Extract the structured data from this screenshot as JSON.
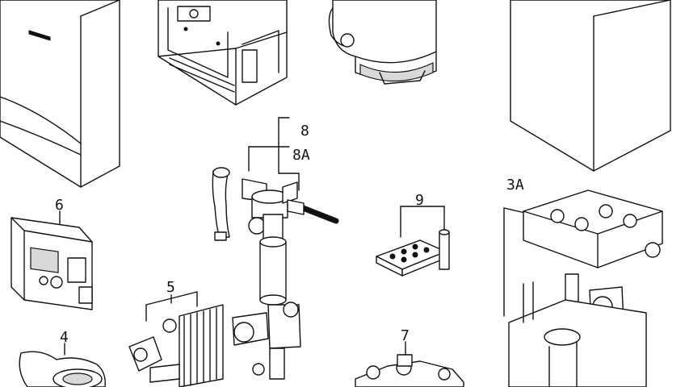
{
  "labels": {
    "p3a": "3A",
    "p4": "4",
    "p5": "5",
    "p6": "6",
    "p7": "7",
    "p8": "8",
    "p8a": "8A",
    "p9": "9"
  }
}
